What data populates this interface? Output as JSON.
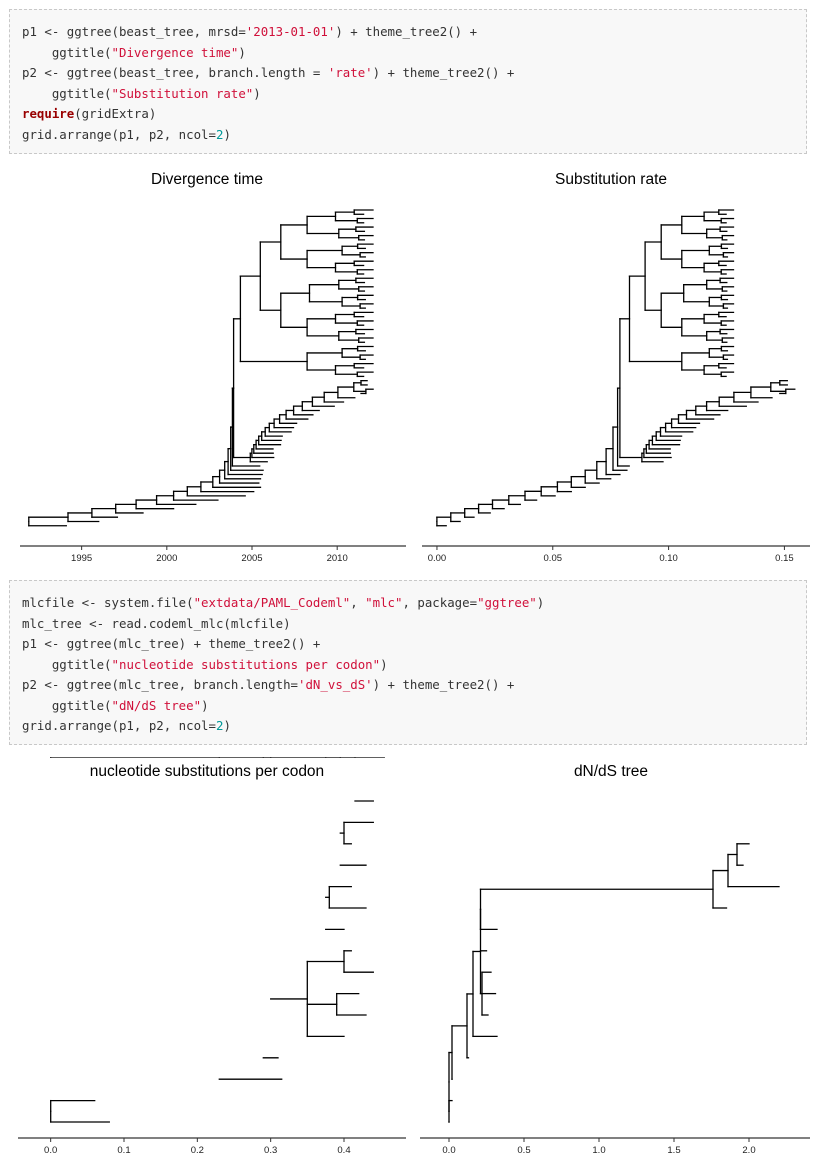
{
  "code_blocks": [
    {
      "lines": [
        [
          [
            "p",
            "p1 <- ggtree(beast_tree, mrsd="
          ],
          [
            "s",
            "'2013-01-01'"
          ],
          [
            "p",
            ") + theme_tree2() +"
          ]
        ],
        [
          [
            "p",
            "    ggtitle("
          ],
          [
            "s",
            "\"Divergence time\""
          ],
          [
            "p",
            ")"
          ]
        ],
        [
          [
            "p",
            "p2 <- ggtree(beast_tree, branch.length = "
          ],
          [
            "s",
            "'rate'"
          ],
          [
            "p",
            ") + theme_tree2() +"
          ]
        ],
        [
          [
            "p",
            "    ggtitle("
          ],
          [
            "s",
            "\"Substitution rate\""
          ],
          [
            "p",
            ")"
          ]
        ],
        [
          [
            "k",
            "require"
          ],
          [
            "p",
            "(gridExtra)"
          ]
        ],
        [
          [
            "p",
            "grid.arrange(p1, p2, ncol="
          ],
          [
            "n",
            "2"
          ],
          [
            "p",
            ")"
          ]
        ]
      ]
    },
    {
      "lines": [
        [
          [
            "p",
            "mlcfile <- system.file("
          ],
          [
            "s",
            "\"extdata/PAML_Codeml\""
          ],
          [
            "p",
            ", "
          ],
          [
            "s",
            "\"mlc\""
          ],
          [
            "p",
            ", package="
          ],
          [
            "s",
            "\"ggtree\""
          ],
          [
            "p",
            ")"
          ]
        ],
        [
          [
            "p",
            "mlc_tree <- read.codeml_mlc(mlcfile)"
          ]
        ],
        [
          [
            "p",
            "p1 <- ggtree(mlc_tree) + theme_tree2() +"
          ]
        ],
        [
          [
            "p",
            "    ggtitle("
          ],
          [
            "s",
            "\"nucleotide substitutions per codon\""
          ],
          [
            "p",
            ")"
          ]
        ],
        [
          [
            "p",
            "p2 <- ggtree(mlc_tree, branch.length="
          ],
          [
            "s",
            "'dN_vs_dS'"
          ],
          [
            "p",
            ") + theme_tree2() +"
          ]
        ],
        [
          [
            "p",
            "    ggtitle("
          ],
          [
            "s",
            "\"dN/dS tree\""
          ],
          [
            "p",
            ")"
          ]
        ],
        [
          [
            "p",
            "grid.arrange(p1, p2, ncol="
          ],
          [
            "n",
            "2"
          ],
          [
            "p",
            ")"
          ]
        ]
      ]
    }
  ],
  "chart_data": [
    {
      "type": "tree",
      "title": "Divergence time",
      "xlim": [
        1991.5,
        2013.1
      ],
      "x_ticks": [
        1995,
        2000,
        2005,
        2010
      ],
      "x_tick_labels": [
        "1995",
        "2000",
        "2005",
        "2010"
      ],
      "n_tips": 76
    },
    {
      "type": "tree",
      "title": "Substitution rate",
      "xlim": [
        -0.003,
        0.155
      ],
      "x_ticks": [
        0.0,
        0.05,
        0.1,
        0.15
      ],
      "x_tick_labels": [
        "0.00",
        "0.05",
        "0.10",
        "0.15"
      ],
      "n_tips": 76
    },
    {
      "type": "tree",
      "title": "nucleotide substitutions per codon",
      "xlim": [
        -0.02,
        0.46
      ],
      "x_ticks": [
        0.0,
        0.1,
        0.2,
        0.3,
        0.4
      ],
      "x_tick_labels": [
        "0.0",
        "0.1",
        "0.2",
        "0.3",
        "0.4"
      ],
      "n_tips": 16
    },
    {
      "type": "tree",
      "title": "dN/dS tree",
      "xlim": [
        -0.1,
        2.3
      ],
      "x_ticks": [
        0.0,
        0.5,
        1.0,
        1.5,
        2.0
      ],
      "x_tick_labels": [
        "0.0",
        "0.5",
        "1.0",
        "1.5",
        "2.0"
      ],
      "n_tips": 16
    }
  ]
}
